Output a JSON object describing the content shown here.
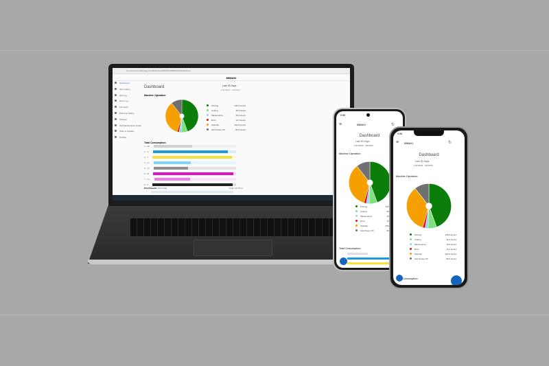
{
  "laptop": {
    "url": "connected.mimakinetgy.com/#/devices/0003/DASHBOARD/dashboard",
    "brand": "MIMAKI",
    "sidebar": [
      "Dashboard",
      "Job Lookup",
      "Job Log",
      "Error Log",
      "Firmware",
      "Warranty Status",
      "Settings",
      "Self Maintenance Guide",
      "Store & Updater",
      "Profiles"
    ],
    "title": "Dashboard",
    "range": "Last 30 Days",
    "dates": "1/31/2023 - 3/2/2023",
    "section_op": "Machine Operation",
    "section_cons": "Total Consumption",
    "section_print": "Print Results",
    "print_select": "Print Area",
    "print_total": "Total: 12.75 m²"
  },
  "machine_operation": {
    "items": [
      {
        "label": "Printing",
        "value": "335.3 Hours",
        "hours": 335.3,
        "color": "#0a7d0a"
      },
      {
        "label": "Cutting",
        "value": "46.4 Hours",
        "hours": 46.4,
        "color": "#7ee07e"
      },
      {
        "label": "Maintenance",
        "value": "16.2 Hours",
        "hours": 16.2,
        "color": "#8fd3f0"
      },
      {
        "label": "Error",
        "value": "14.1 Hours",
        "hours": 14.1,
        "color": "#e81010"
      },
      {
        "label": "Standby",
        "value": "262.6 Hours",
        "hours": 262.6,
        "color": "#f5a000"
      },
      {
        "label": "Sub Power Off",
        "value": "80.0 Hours",
        "hours": 80.0,
        "color": "#707070"
      }
    ]
  },
  "consumption": [
    {
      "label": "1 - Wi",
      "fill": 0.47,
      "color": "#cfcfcf",
      "track": "#efefef"
    },
    {
      "label": "2 - C",
      "fill": 0.9,
      "color": "#1e9ad6",
      "track": "#d6eefa"
    },
    {
      "label": "3 - Y",
      "fill": 0.95,
      "color": "#f5e040",
      "track": "#fbf6cf"
    },
    {
      "label": "4 - Lc",
      "fill": 0.45,
      "color": "#7fd6f5",
      "track": "#e3f6fd"
    },
    {
      "label": "5 - Lk",
      "fill": 0.42,
      "color": "#909090",
      "track": "#e3e3e3"
    },
    {
      "label": "6 - M",
      "fill": 0.97,
      "color": "#e010c8",
      "track": "#fbd2f5"
    },
    {
      "label": "7 - Lm",
      "fill": 0.44,
      "color": "#f07ae6",
      "track": "#fde0fa"
    },
    {
      "label": "8 - K",
      "fill": 0.96,
      "color": "#222222",
      "track": "#dddddd"
    }
  ],
  "phone": {
    "time": "5:58",
    "brand": "MIMAKI",
    "title": "Dashboard",
    "range": "Last 30 Days",
    "dates": "1/31/2023 - 3/2/2023",
    "section_op": "Machine Operation",
    "section_cons": "Total Consumption"
  }
}
